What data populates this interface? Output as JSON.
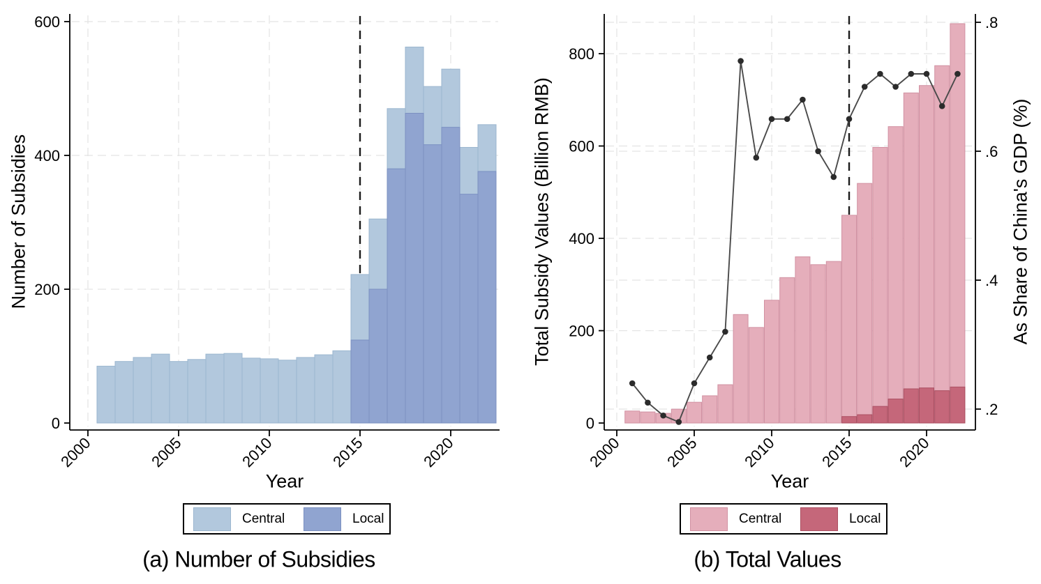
{
  "figure": {
    "background": "#ffffff",
    "axis_color": "#000000",
    "grid_color": "#e3e3e3",
    "event_line_color": "#1b1b1b"
  },
  "chart_data": [
    {
      "type": "bar",
      "panel": "a",
      "caption": "(a) Number of Subsidies",
      "xlabel": "Year",
      "ylabel": "Number of Subsidies",
      "years": [
        2001,
        2002,
        2003,
        2004,
        2005,
        2006,
        2007,
        2008,
        2009,
        2010,
        2011,
        2012,
        2013,
        2014,
        2015,
        2016,
        2017,
        2018,
        2019,
        2020,
        2021,
        2022
      ],
      "series": [
        {
          "name": "Central",
          "values": [
            85,
            92,
            98,
            103,
            92,
            95,
            103,
            104,
            97,
            96,
            94,
            98,
            102,
            108,
            222,
            305,
            470,
            562,
            503,
            529,
            412,
            446
          ]
        },
        {
          "name": "Local",
          "values": [
            null,
            null,
            null,
            null,
            null,
            null,
            null,
            null,
            null,
            null,
            null,
            null,
            null,
            null,
            124,
            200,
            380,
            463,
            416,
            442,
            342,
            376
          ]
        }
      ],
      "xticks": [
        2000,
        2005,
        2010,
        2015,
        2020
      ],
      "yticks": [
        0,
        200,
        400,
        600
      ],
      "ylim": [
        0,
        620
      ],
      "grid": true,
      "vline_year": 2015,
      "legend": [
        "Central",
        "Local"
      ],
      "legend_position": "bottom",
      "colors": {
        "central": "#b2c8dd",
        "central_border": "#9bb6cf",
        "local": "#90a4d0",
        "local_border": "#7b90c1"
      }
    },
    {
      "type": "bar-line",
      "panel": "b",
      "caption": "(b) Total Values",
      "xlabel": "Year",
      "ylabel_left": "Total Subsidy Values (Billion RMB)",
      "ylabel_right": "As Share of China's GDP (%)",
      "years": [
        2001,
        2002,
        2003,
        2004,
        2005,
        2006,
        2007,
        2008,
        2009,
        2010,
        2011,
        2012,
        2013,
        2014,
        2015,
        2016,
        2017,
        2018,
        2019,
        2020,
        2021,
        2022
      ],
      "series": [
        {
          "name": "Central",
          "values": [
            26,
            24,
            21,
            30,
            45,
            59,
            83,
            235,
            207,
            266,
            315,
            360,
            343,
            350,
            450,
            519,
            597,
            642,
            715,
            731,
            774,
            865
          ]
        },
        {
          "name": "Local",
          "values": [
            null,
            null,
            null,
            null,
            null,
            null,
            null,
            null,
            null,
            null,
            null,
            null,
            null,
            null,
            14,
            18,
            36,
            52,
            74,
            76,
            70,
            78
          ]
        }
      ],
      "line_series": {
        "name": "As Share of China's GDP (%)",
        "axis": "right",
        "values": [
          0.24,
          0.21,
          0.19,
          0.18,
          0.24,
          0.28,
          0.32,
          0.74,
          0.59,
          0.65,
          0.65,
          0.68,
          0.6,
          0.56,
          0.65,
          0.7,
          0.72,
          0.7,
          0.72,
          0.72,
          0.67,
          0.72
        ]
      },
      "xticks": [
        2000,
        2005,
        2010,
        2015,
        2020
      ],
      "yticks_left": [
        0,
        200,
        400,
        600,
        800
      ],
      "ylim_left": [
        0,
        880
      ],
      "yticks_right_values": [
        0.2,
        0.4,
        0.6,
        0.8
      ],
      "yticks_right_labels": [
        ".2",
        ".4",
        ".6",
        ".8"
      ],
      "ylim_right": [
        0.165,
        0.815
      ],
      "grid": true,
      "vline_year": 2015,
      "legend": [
        "Central",
        "Local"
      ],
      "legend_position": "bottom",
      "colors": {
        "central": "#e5aebb",
        "central_border": "#d191a2",
        "local": "#c5677a",
        "local_border": "#ab4f62",
        "line": "#4a4a4a",
        "dot": "#2b2b2b"
      }
    }
  ]
}
